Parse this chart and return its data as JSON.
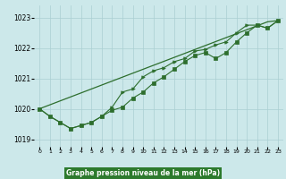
{
  "hours": [
    0,
    1,
    2,
    3,
    4,
    5,
    6,
    7,
    8,
    9,
    10,
    11,
    12,
    13,
    14,
    15,
    16,
    17,
    18,
    19,
    20,
    21,
    22,
    23
  ],
  "line_straight": [
    1020.0,
    1020.13,
    1020.26,
    1020.39,
    1020.52,
    1020.65,
    1020.78,
    1020.91,
    1021.04,
    1021.17,
    1021.3,
    1021.43,
    1021.56,
    1021.69,
    1021.82,
    1021.95,
    1022.08,
    1022.21,
    1022.34,
    1022.47,
    1022.6,
    1022.73,
    1022.86,
    1022.9
  ],
  "line_square": [
    1020.0,
    1019.75,
    1019.55,
    1019.35,
    1019.45,
    1019.55,
    1019.75,
    1019.95,
    1020.05,
    1020.35,
    1020.55,
    1020.85,
    1021.05,
    1021.3,
    1021.55,
    1021.75,
    1021.85,
    1021.65,
    1021.85,
    1022.2,
    1022.5,
    1022.75,
    1022.65,
    1022.9
  ],
  "line_arrow": [
    1020.0,
    1019.75,
    1019.55,
    1019.35,
    1019.45,
    1019.55,
    1019.75,
    1020.05,
    1020.55,
    1020.65,
    1021.05,
    1021.25,
    1021.35,
    1021.55,
    1021.65,
    1021.9,
    1021.95,
    1022.1,
    1022.2,
    1022.5,
    1022.75,
    1022.75,
    1022.65,
    1022.9
  ],
  "bg_color": "#cce8ea",
  "grid_color": "#aacfd2",
  "line_color": "#2d6e2d",
  "xlabel": "Graphe pression niveau de la mer (hPa)",
  "xlabel_bg": "#2d7a2d",
  "xlabel_color": "#ffffff",
  "ylim_min": 1018.75,
  "ylim_max": 1023.4,
  "yticks": [
    1019,
    1020,
    1021,
    1022,
    1023
  ],
  "xticks": [
    0,
    1,
    2,
    3,
    4,
    5,
    6,
    7,
    8,
    9,
    10,
    11,
    12,
    13,
    14,
    15,
    16,
    17,
    18,
    19,
    20,
    21,
    22,
    23
  ],
  "xtick_labels": [
    "0",
    "1",
    "2",
    "3",
    "4",
    "5",
    "6",
    "7",
    "8",
    "9",
    "10",
    "11",
    "12",
    "13",
    "14",
    "15",
    "16",
    "17",
    "18",
    "19",
    "20",
    "21",
    "22",
    "23"
  ]
}
